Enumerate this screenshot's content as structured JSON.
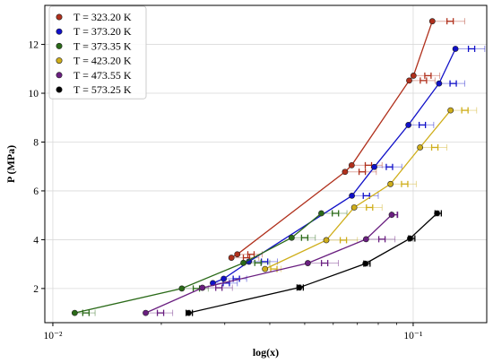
{
  "chart_data": {
    "type": "scatter",
    "xlabel": "log(x)",
    "ylabel": "P (MPa)",
    "xscale": "log",
    "xlim": [
      0.0095,
      0.16
    ],
    "ylim": [
      0.6,
      13.6
    ],
    "x_ticks": [
      {
        "value": 0.01,
        "label": "10⁻²"
      },
      {
        "value": 0.1,
        "label": "10⁻¹"
      }
    ],
    "y_ticks": [
      2,
      4,
      6,
      8,
      10,
      12
    ],
    "minor_x_ticks": [
      0.02,
      0.03,
      0.04,
      0.05,
      0.06,
      0.07,
      0.08,
      0.09
    ],
    "grid": true,
    "legend_position": "top-left",
    "series": [
      {
        "name": "T = 323.20 K",
        "color": "#b0301c",
        "x": [
          0.0313,
          0.0325,
          0.0647,
          0.0675,
          0.0975,
          0.1002,
          0.113
        ],
        "y": [
          3.26,
          3.4,
          6.78,
          7.05,
          10.52,
          10.72,
          12.95
        ],
        "x_upper": [
          0.0373,
          0.0381,
          0.079,
          0.082,
          0.115,
          0.1185,
          0.139
        ]
      },
      {
        "name": "T = 373.20 K",
        "color": "#1010c8",
        "x": [
          0.0278,
          0.0298,
          0.035,
          0.0676,
          0.078,
          0.097,
          0.118,
          0.131
        ],
        "y": [
          2.22,
          2.4,
          3.1,
          5.8,
          6.98,
          8.7,
          10.4,
          11.82
        ],
        "x_upper": [
          0.0325,
          0.0345,
          0.042,
          0.08,
          0.093,
          0.114,
          0.139,
          0.158
        ]
      },
      {
        "name": "T = 373.35 K",
        "color": "#2a6a18",
        "x": [
          0.0115,
          0.0228,
          0.0338,
          0.046,
          0.0556
        ],
        "y": [
          1.0,
          2.0,
          3.05,
          4.08,
          5.08
        ],
        "x_upper": [
          0.0131,
          0.027,
          0.04,
          0.0535,
          0.0655
        ]
      },
      {
        "name": "T = 423.20 K",
        "color": "#cfae1a",
        "x": [
          0.0388,
          0.0574,
          0.0686,
          0.0865,
          0.1045,
          0.127
        ],
        "y": [
          2.8,
          3.98,
          5.32,
          6.28,
          7.78,
          9.3
        ],
        "x_upper": [
          0.043,
          0.07,
          0.082,
          0.102,
          0.124,
          0.15
        ]
      },
      {
        "name": "T = 473.55 K",
        "color": "#6a1f80",
        "x": [
          0.0181,
          0.026,
          0.051,
          0.074,
          0.0872
        ],
        "y": [
          1.0,
          2.03,
          3.04,
          4.02,
          5.02
        ],
        "x_upper": [
          0.0215,
          0.0315,
          0.062,
          0.089,
          0.09
        ]
      },
      {
        "name": "T = 573.25 K",
        "color": "#000000",
        "x": [
          0.0238,
          0.0483,
          0.0737,
          0.098,
          0.1165
        ],
        "y": [
          1.0,
          2.04,
          3.02,
          4.05,
          5.08
        ],
        "x_upper": [
          0.024,
          0.0488,
          0.075,
          0.1,
          0.118
        ]
      }
    ]
  }
}
